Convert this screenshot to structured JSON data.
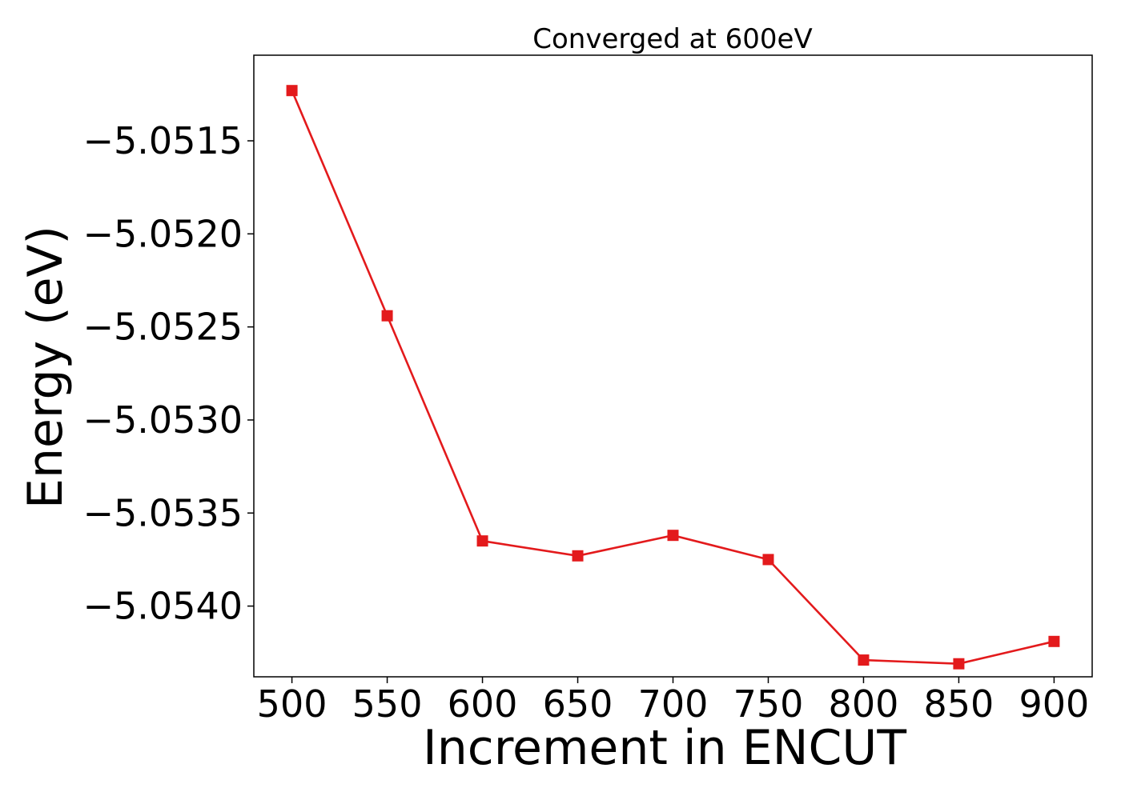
{
  "chart_data": {
    "type": "line",
    "title": "Converged at 600eV",
    "xlabel": "Increment in ENCUT",
    "ylabel": "Energy (eV)",
    "x": [
      500,
      550,
      600,
      650,
      700,
      750,
      800,
      850,
      900
    ],
    "xticks": [
      500,
      550,
      600,
      650,
      700,
      750,
      800,
      850,
      900
    ],
    "xtick_labels": [
      "500",
      "550",
      "600",
      "650",
      "700",
      "750",
      "800",
      "850",
      "900"
    ],
    "yticks": [
      -5.0515,
      -5.052,
      -5.0525,
      -5.053,
      -5.0535,
      -5.054
    ],
    "ytick_labels": [
      "−5.0515",
      "−5.0520",
      "−5.0525",
      "−5.0530",
      "−5.0535",
      "−5.0540"
    ],
    "xlim": [
      480,
      920
    ],
    "ylim": [
      -5.05438,
      -5.05104
    ],
    "grid": false,
    "series": [
      {
        "color": "#e31a1c",
        "marker": "square",
        "values": [
          -5.05123,
          -5.05244,
          -5.05365,
          -5.05373,
          -5.05362,
          -5.05375,
          -5.05429,
          -5.05431,
          -5.05419
        ]
      }
    ]
  }
}
